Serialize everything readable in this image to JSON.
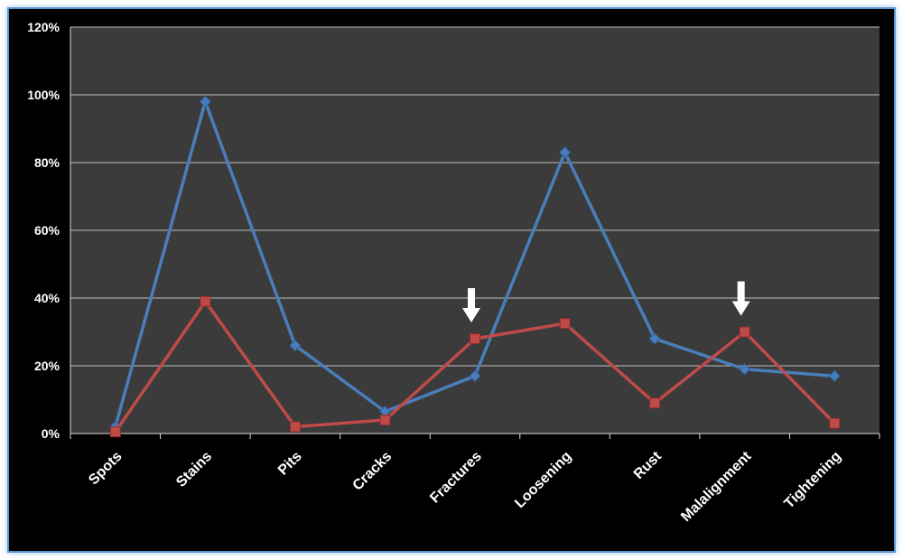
{
  "chart_data": {
    "type": "line",
    "categories": [
      "Spots",
      "Stains",
      "Pits",
      "Cracks",
      "Fractures",
      "Loosening",
      "Rust",
      "Malalignment",
      "Tightening"
    ],
    "y_tick_labels": [
      "0%",
      "20%",
      "40%",
      "60%",
      "80%",
      "100%",
      "120%"
    ],
    "ylim": [
      0,
      1.2
    ],
    "grid": true,
    "series": [
      {
        "color": "#4a7ebb",
        "marker": "diamond",
        "values": [
          0.02,
          0.98,
          0.26,
          0.065,
          0.17,
          0.83,
          0.28,
          0.19,
          0.17
        ]
      },
      {
        "color": "#be4b48",
        "marker": "square",
        "values": [
          0.005,
          0.39,
          0.02,
          0.04,
          0.28,
          0.325,
          0.09,
          0.3,
          0.03
        ]
      }
    ],
    "annotations": [
      {
        "type": "arrow-down",
        "category": "Fractures",
        "color": "#ffffff"
      },
      {
        "type": "arrow-down",
        "category": "Malalignment",
        "color": "#ffffff"
      }
    ],
    "plot_background": "#3b3b3b",
    "background": "#000000",
    "gridline_color": "#bfbfbf"
  }
}
